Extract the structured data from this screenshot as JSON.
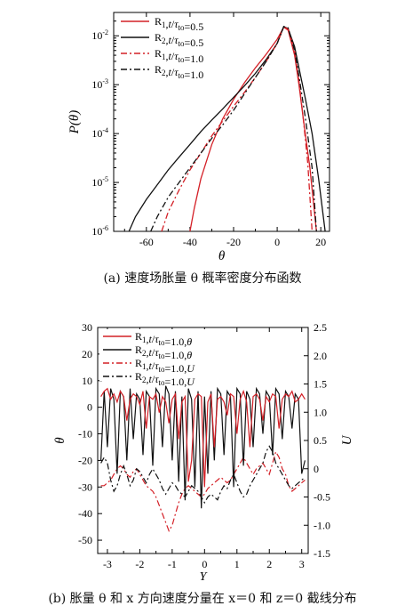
{
  "colors": {
    "red": "#d42027",
    "black": "#111111"
  },
  "captions": {
    "a": "(a) 速度场胀量 θ 概率密度分布函数",
    "b": "(b) 胀量 θ 和 x 方向速度分量在 x＝0 和 z＝0 截线分布"
  },
  "chart_data": [
    {
      "type": "line",
      "title": "",
      "xlabel": "θ",
      "ylabel": "P(θ)",
      "xlim": [
        -75,
        24
      ],
      "ylim": [
        1e-06,
        0.03
      ],
      "yscale": "log",
      "xticks": [
        -60,
        -40,
        -20,
        0,
        20
      ],
      "xtick_labels": [
        "-60",
        "-40",
        "-20",
        "0",
        "20"
      ],
      "yticks": [
        1e-06,
        1e-05,
        0.0001,
        0.001,
        0.01
      ],
      "ytick_labels": [
        "10-6",
        "10-5",
        "10-4",
        "10-3",
        "10-2"
      ],
      "legend_position": "top-left",
      "series": [
        {
          "name": "R1,t/τto=0.5",
          "color": "#d42027",
          "dash": "solid",
          "x": [
            -40,
            -38,
            -35,
            -30,
            -25,
            -20,
            -15,
            -10,
            -5,
            0,
            3,
            5,
            8,
            10,
            12,
            15,
            18
          ],
          "y": [
            1e-06,
            3e-06,
            1.2e-05,
            6e-05,
            0.0002,
            0.0005,
            0.0011,
            0.0022,
            0.0042,
            0.0085,
            0.015,
            0.013,
            0.004,
            0.001,
            0.0002,
            2e-05,
            1e-06
          ]
        },
        {
          "name": "R2,t/τto=0.5",
          "color": "#111111",
          "dash": "solid",
          "x": [
            -68,
            -65,
            -60,
            -55,
            -50,
            -45,
            -40,
            -35,
            -30,
            -25,
            -20,
            -15,
            -10,
            -5,
            0,
            3,
            5,
            8,
            10,
            13,
            16,
            19,
            22
          ],
          "y": [
            1e-06,
            2e-06,
            4.5e-06,
            9e-06,
            1.8e-05,
            3.3e-05,
            6e-05,
            0.00011,
            0.00019,
            0.00032,
            0.00055,
            0.00095,
            0.0017,
            0.0033,
            0.007,
            0.0155,
            0.014,
            0.006,
            0.0022,
            0.0005,
            0.0001,
            1.2e-05,
            1e-06
          ]
        },
        {
          "name": "R1,t/τto=1.0",
          "color": "#d42027",
          "dash": "dashdot",
          "x": [
            -53,
            -50,
            -45,
            -40,
            -35,
            -30,
            -25,
            -20,
            -15,
            -10,
            -5,
            0,
            3,
            5,
            8,
            10,
            12,
            14,
            16
          ],
          "y": [
            1e-06,
            2.5e-06,
            7e-06,
            1.8e-05,
            4e-05,
            9e-05,
            0.00018,
            0.00036,
            0.0007,
            0.0014,
            0.003,
            0.007,
            0.015,
            0.014,
            0.005,
            0.0012,
            0.0002,
            2.5e-05,
            1e-06
          ]
        },
        {
          "name": "R2,t/τto=1.0",
          "color": "#111111",
          "dash": "dashdot",
          "x": [
            -58,
            -55,
            -50,
            -45,
            -40,
            -35,
            -30,
            -25,
            -20,
            -15,
            -10,
            -5,
            0,
            3,
            5,
            8,
            10,
            13,
            16,
            18
          ],
          "y": [
            1e-06,
            2e-06,
            5e-06,
            1e-05,
            2e-05,
            4e-05,
            8e-05,
            0.00015,
            0.0003,
            0.00065,
            0.0014,
            0.003,
            0.007,
            0.0155,
            0.0145,
            0.005,
            0.0015,
            0.0002,
            2e-05,
            1e-06
          ]
        }
      ]
    },
    {
      "type": "line",
      "title": "",
      "xlabel": "Y",
      "ylabel": "θ",
      "y2label": "U",
      "xlim": [
        -3.3,
        3.2
      ],
      "ylim": [
        -55,
        30
      ],
      "y2lim": [
        -1.5,
        2.5
      ],
      "xticks": [
        -3,
        -2,
        -1,
        0,
        1,
        2,
        3
      ],
      "xtick_labels": [
        "-3",
        "-2",
        "-1",
        "0",
        "1",
        "2",
        "3"
      ],
      "yticks": [
        -50,
        -40,
        -30,
        -20,
        -10,
        0,
        10,
        20,
        30
      ],
      "ytick_labels": [
        "-50",
        "-40",
        "-30",
        "-20",
        "-10",
        "0",
        "10",
        "20",
        "30"
      ],
      "y2ticks": [
        -1.5,
        -1.0,
        -0.5,
        0,
        0.5,
        1.0,
        1.5,
        2.0,
        2.5
      ],
      "y2tick_labels": [
        "-1.5",
        "-1.0",
        "-0.5",
        "0",
        "0.5",
        "1.0",
        "1.5",
        "2.0",
        "2.5"
      ],
      "legend_position": "top-left",
      "series": [
        {
          "name": "R1,t/τto=1.0,θ",
          "color": "#d42027",
          "dash": "solid",
          "axis": "left",
          "x": [
            -3.2,
            -3.1,
            -3.0,
            -2.9,
            -2.8,
            -2.7,
            -2.6,
            -2.5,
            -2.4,
            -2.3,
            -2.2,
            -2.1,
            -2.0,
            -1.9,
            -1.8,
            -1.7,
            -1.6,
            -1.5,
            -1.4,
            -1.3,
            -1.2,
            -1.1,
            -1.0,
            -0.9,
            -0.8,
            -0.7,
            -0.6,
            -0.5,
            -0.4,
            -0.3,
            -0.2,
            -0.1,
            0.0,
            0.1,
            0.2,
            0.3,
            0.4,
            0.5,
            0.6,
            0.7,
            0.8,
            0.9,
            1.0,
            1.1,
            1.2,
            1.3,
            1.4,
            1.5,
            1.6,
            1.7,
            1.8,
            1.9,
            2.0,
            2.1,
            2.2,
            2.3,
            2.4,
            2.5,
            2.6,
            2.7,
            2.8,
            2.9,
            3.0,
            3.1
          ],
          "y": [
            4,
            6,
            7,
            3,
            5,
            2,
            6,
            4,
            -5,
            3,
            5,
            4,
            1,
            6,
            -8,
            4,
            3,
            5,
            -2,
            4,
            2,
            -6,
            3,
            5,
            -12,
            2,
            4,
            -28,
            -20,
            3,
            5,
            4,
            -30,
            2,
            5,
            -15,
            3,
            4,
            2,
            -3,
            5,
            4,
            -10,
            3,
            6,
            2,
            -15,
            4,
            5,
            3,
            -5,
            4,
            2,
            5,
            4,
            -8,
            3,
            5,
            4,
            6,
            2,
            3,
            5,
            3
          ]
        },
        {
          "name": "R2,t/τto=1.0,θ",
          "color": "#111111",
          "dash": "solid",
          "axis": "left",
          "x": [
            -3.2,
            -3.1,
            -3.0,
            -2.9,
            -2.8,
            -2.7,
            -2.6,
            -2.5,
            -2.4,
            -2.3,
            -2.2,
            -2.1,
            -2.0,
            -1.9,
            -1.8,
            -1.7,
            -1.6,
            -1.5,
            -1.4,
            -1.3,
            -1.2,
            -1.1,
            -1.0,
            -0.9,
            -0.8,
            -0.7,
            -0.6,
            -0.5,
            -0.4,
            -0.3,
            -0.2,
            -0.1,
            0.0,
            0.1,
            0.2,
            0.3,
            0.4,
            0.5,
            0.6,
            0.7,
            0.8,
            0.9,
            1.0,
            1.1,
            1.2,
            1.3,
            1.4,
            1.5,
            1.6,
            1.7,
            1.8,
            1.9,
            2.0,
            2.1,
            2.2,
            2.3,
            2.4,
            2.5,
            2.6,
            2.7,
            2.8,
            2.9,
            3.0,
            3.1
          ],
          "y": [
            -20,
            6,
            -15,
            7,
            3,
            -25,
            6,
            4,
            -20,
            7,
            -12,
            5,
            3,
            -18,
            6,
            4,
            -22,
            7,
            5,
            -15,
            8,
            5,
            -20,
            6,
            -28,
            4,
            -35,
            7,
            3,
            -30,
            6,
            -38,
            4,
            -25,
            6,
            -20,
            7,
            5,
            -18,
            6,
            4,
            -30,
            7,
            5,
            -22,
            6,
            3,
            -15,
            7,
            5,
            -10,
            6,
            4,
            -18,
            7,
            5,
            -12,
            6,
            4,
            -8,
            5,
            3,
            -25,
            -20
          ]
        },
        {
          "name": "R1,t/τto=1.0,U",
          "color": "#d42027",
          "dash": "dashdot",
          "axis": "right",
          "x": [
            -3.2,
            -3.1,
            -3.0,
            -2.9,
            -2.8,
            -2.7,
            -2.6,
            -2.5,
            -2.4,
            -2.3,
            -2.2,
            -2.1,
            -2.0,
            -1.9,
            -1.8,
            -1.7,
            -1.6,
            -1.5,
            -1.4,
            -1.3,
            -1.2,
            -1.1,
            -1.0,
            -0.9,
            -0.8,
            -0.7,
            -0.6,
            -0.5,
            -0.4,
            -0.3,
            -0.2,
            -0.1,
            0.0,
            0.1,
            0.2,
            0.3,
            0.4,
            0.5,
            0.6,
            0.7,
            0.8,
            0.9,
            1.0,
            1.1,
            1.2,
            1.3,
            1.4,
            1.5,
            1.6,
            1.7,
            1.8,
            1.9,
            2.0,
            2.1,
            2.2,
            2.3,
            2.4,
            2.5,
            2.6,
            2.7,
            2.8,
            2.9,
            3.0,
            3.1
          ],
          "y": [
            -0.3,
            -0.3,
            -0.25,
            -0.2,
            -0.1,
            0.0,
            0.05,
            0.0,
            -0.1,
            -0.15,
            -0.05,
            0.0,
            -0.1,
            -0.2,
            -0.3,
            -0.35,
            -0.4,
            -0.5,
            -0.65,
            -0.8,
            -0.95,
            -1.1,
            -1.0,
            -0.8,
            -0.6,
            -0.45,
            -0.35,
            -0.3,
            -0.35,
            -0.4,
            -0.45,
            -0.5,
            -0.45,
            -0.35,
            -0.3,
            -0.25,
            -0.2,
            -0.15,
            -0.2,
            -0.25,
            -0.2,
            -0.1,
            0.0,
            0.1,
            0.2,
            0.1,
            0.0,
            -0.1,
            0.0,
            0.05,
            0.1,
            0.0,
            -0.1,
            0.1,
            0.3,
            0.2,
            0.0,
            -0.1,
            -0.3,
            -0.4,
            -0.35,
            -0.3,
            -0.25,
            -0.2
          ]
        },
        {
          "name": "R2,t/τto=1.0,U",
          "color": "#111111",
          "dash": "dashdot",
          "axis": "right",
          "x": [
            -3.2,
            -3.1,
            -3.0,
            -2.9,
            -2.8,
            -2.7,
            -2.6,
            -2.5,
            -2.4,
            -2.3,
            -2.2,
            -2.1,
            -2.0,
            -1.9,
            -1.8,
            -1.7,
            -1.6,
            -1.5,
            -1.4,
            -1.3,
            -1.2,
            -1.1,
            -1.0,
            -0.9,
            -0.8,
            -0.7,
            -0.6,
            -0.5,
            -0.4,
            -0.3,
            -0.2,
            -0.1,
            0.0,
            0.1,
            0.2,
            0.3,
            0.4,
            0.5,
            0.6,
            0.7,
            0.8,
            0.9,
            1.0,
            1.1,
            1.2,
            1.3,
            1.4,
            1.5,
            1.6,
            1.7,
            1.8,
            1.9,
            2.0,
            2.1,
            2.2,
            2.3,
            2.4,
            2.5,
            2.6,
            2.7,
            2.8,
            2.9,
            3.0,
            3.1
          ],
          "y": [
            0.1,
            0.2,
            0.1,
            -0.2,
            -0.4,
            -0.3,
            -0.1,
            0.05,
            -0.1,
            -0.3,
            -0.2,
            0.0,
            -0.05,
            -0.15,
            -0.25,
            -0.1,
            0.0,
            -0.1,
            -0.2,
            -0.35,
            -0.45,
            -0.35,
            -0.25,
            -0.3,
            -0.4,
            -0.45,
            -0.5,
            -0.4,
            -0.3,
            -0.35,
            -0.4,
            -0.5,
            -0.6,
            -0.5,
            -0.45,
            -0.5,
            -0.55,
            -0.4,
            -0.3,
            -0.35,
            -0.2,
            -0.1,
            -0.25,
            -0.4,
            -0.5,
            -0.45,
            -0.3,
            -0.2,
            -0.1,
            0.0,
            0.1,
            0.3,
            0.4,
            0.3,
            0.1,
            0.0,
            -0.1,
            -0.2,
            -0.3,
            -0.35,
            -0.3,
            -0.25,
            -0.2,
            -0.15
          ]
        }
      ]
    }
  ]
}
